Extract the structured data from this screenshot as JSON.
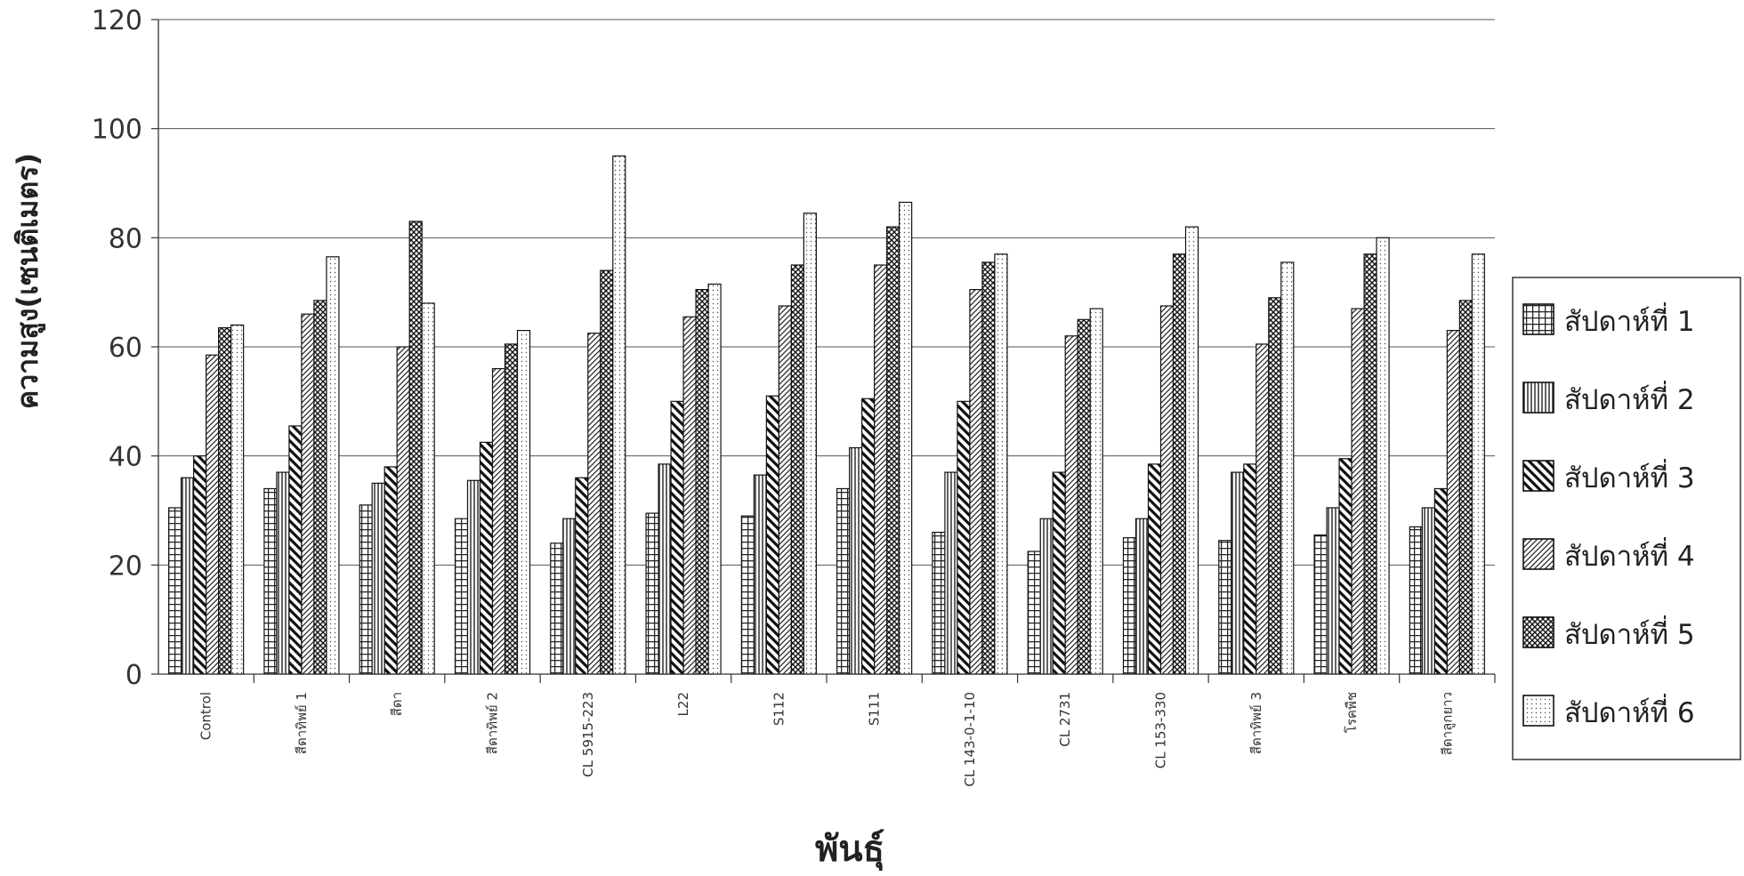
{
  "chart_data": {
    "type": "bar",
    "xlabel": "พันธุ์",
    "ylabel": "ความสูง(เซนติเมตร)",
    "ylim": [
      0,
      120
    ],
    "yticks": [
      "0",
      "20",
      "40",
      "60",
      "80",
      "100",
      "120"
    ],
    "grid": "horizontal",
    "legend_position": "right",
    "categories": [
      "Control",
      "สีดาทิพย์ 1",
      "สีดา",
      "สีดาทิพย์ 2",
      "CL 5915-223",
      "L22",
      "S112",
      "S111",
      "CL 143-0-1-10",
      "CL 2731",
      "CL 153-330",
      "สีดาทิพย์ 3",
      "โรคพืช",
      "สีดาลูกยาว"
    ],
    "series": [
      {
        "name": "สัปดาห์ที่ 1",
        "pattern": "grid",
        "values": [
          30.5,
          34,
          31,
          28.5,
          24,
          29.5,
          29,
          34,
          26,
          22.5,
          25,
          24.5,
          25.5,
          27
        ]
      },
      {
        "name": "สัปดาห์ที่ 2",
        "pattern": "vertical",
        "values": [
          36,
          37,
          35,
          35.5,
          28.5,
          38.5,
          36.5,
          41.5,
          37,
          28.5,
          28.5,
          37,
          30.5,
          30.5
        ]
      },
      {
        "name": "สัปดาห์ที่ 3",
        "pattern": "diag-back",
        "values": [
          40,
          45.5,
          38,
          42.5,
          36,
          50,
          51,
          50.5,
          50,
          37,
          38.5,
          38.5,
          39.5,
          34
        ]
      },
      {
        "name": "สัปดาห์ที่ 4",
        "pattern": "diag-fwd",
        "values": [
          58.5,
          66,
          60,
          56,
          62.5,
          65.5,
          67.5,
          75,
          70.5,
          62,
          67.5,
          60.5,
          67,
          63
        ]
      },
      {
        "name": "สัปดาห์ที่ 5",
        "pattern": "crosshatch",
        "values": [
          63.5,
          68.5,
          83,
          60.5,
          74,
          70.5,
          75,
          82,
          75.5,
          65,
          77,
          69,
          77,
          68.5
        ]
      },
      {
        "name": "สัปดาห์ที่ 6",
        "pattern": "dots",
        "values": [
          64,
          76.5,
          68,
          63,
          95,
          71.5,
          84.5,
          86.5,
          77,
          67,
          82,
          75.5,
          80,
          77
        ]
      }
    ]
  }
}
